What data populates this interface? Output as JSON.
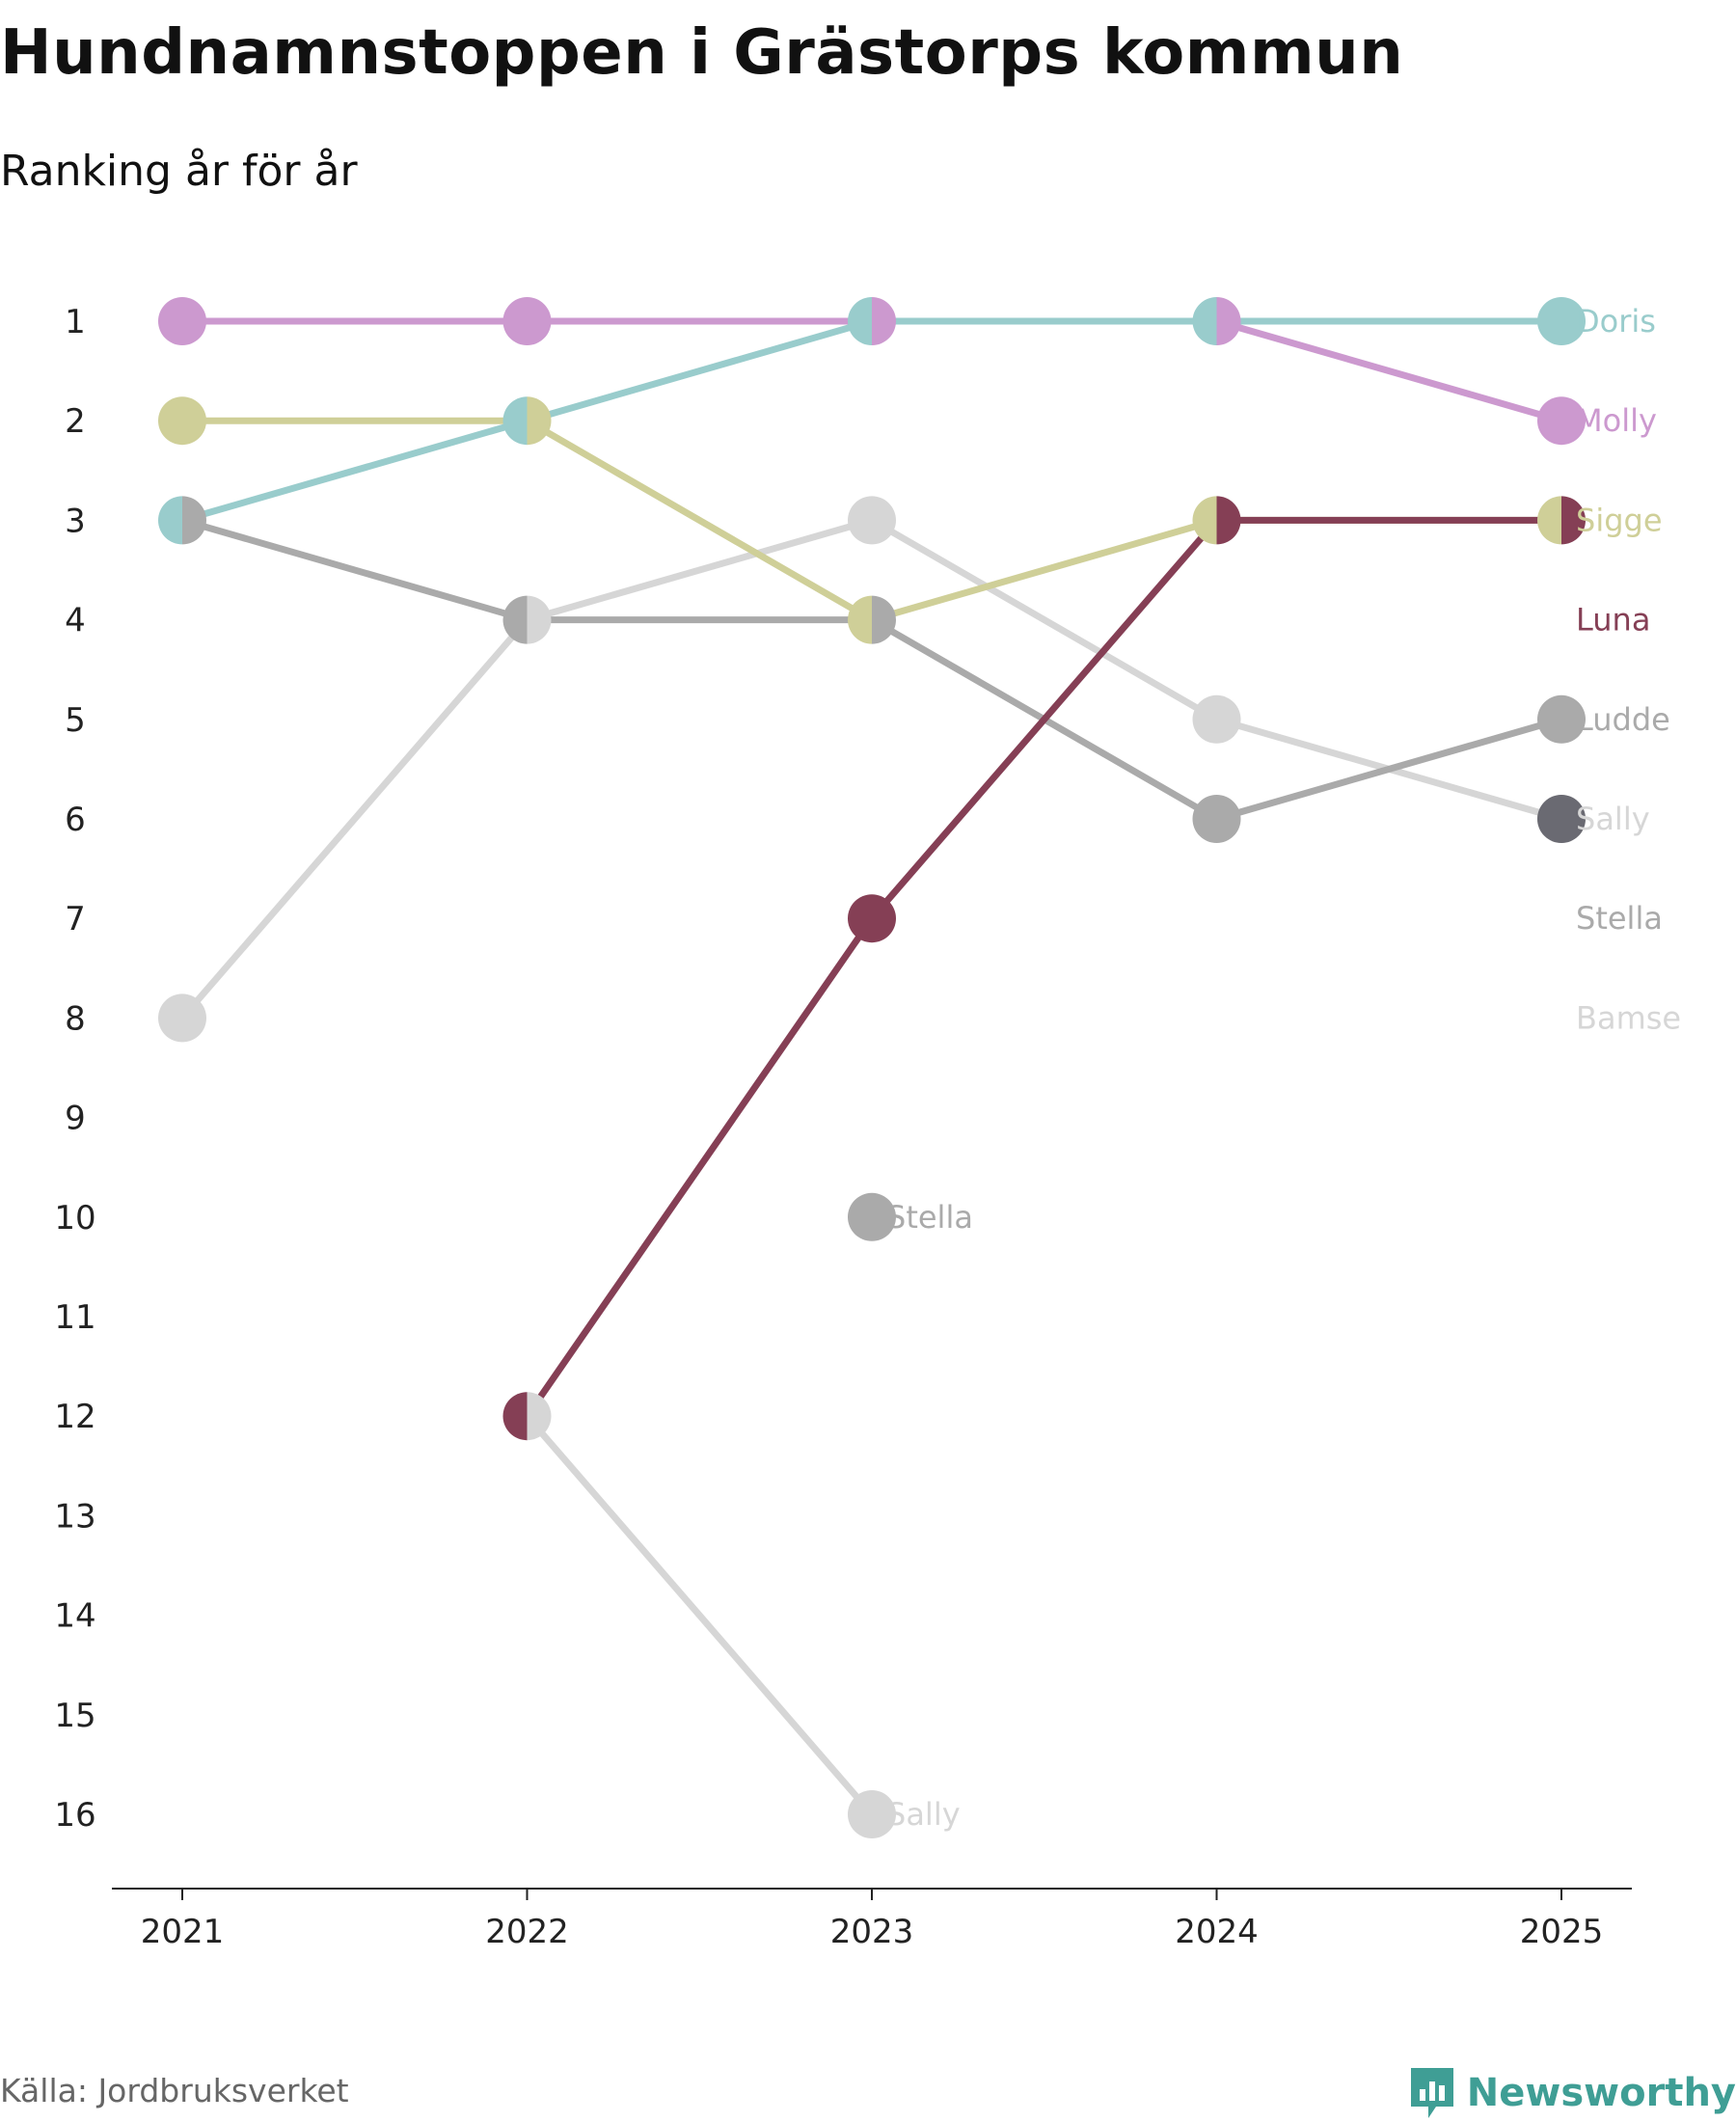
{
  "title": "Hundnamnstoppen i Grästorps kommun",
  "subtitle": "Ranking år för år",
  "source": "Källa: Jordbruksverket",
  "brand": {
    "name": "Newsworthy",
    "icon": "newsworthy-logo-icon",
    "color": "#3f9e95"
  },
  "chart_data": {
    "type": "line",
    "title": "Hundnamnstoppen i Grästorps kommun",
    "subtitle": "Ranking år för år",
    "xlabel": "",
    "ylabel": "",
    "x": [
      "2021",
      "2022",
      "2023",
      "2024",
      "2025"
    ],
    "ylim": [
      1,
      16
    ],
    "y_inverted": true,
    "yticks": [
      "1",
      "2",
      "3",
      "4",
      "5",
      "6",
      "7",
      "8",
      "9",
      "10",
      "11",
      "12",
      "13",
      "14",
      "15",
      "16"
    ],
    "grid": false,
    "series": [
      {
        "name": "Bamse",
        "color": "#d6d6d6",
        "values": [
          8,
          4,
          3,
          5,
          6
        ],
        "label": "Bamse"
      },
      {
        "name": "Sally",
        "color": "#d6d6d6",
        "values": [
          null,
          12,
          16,
          null,
          null
        ],
        "label": "Sally"
      },
      {
        "name": "Stella",
        "color": "#aaaaaa",
        "values": [
          null,
          null,
          10,
          null,
          null
        ],
        "label": "Stella"
      },
      {
        "name": "Ludde",
        "color": "#aaaaaa",
        "values": [
          3,
          4,
          4,
          6,
          5
        ],
        "label": "Ludde"
      },
      {
        "name": "Sigge",
        "color": "#cfcf98",
        "values": [
          2,
          2,
          4,
          3,
          3
        ],
        "label": "Sigge"
      },
      {
        "name": "Luna",
        "color": "#853f55",
        "values": [
          null,
          12,
          7,
          3,
          3
        ],
        "label": "Luna"
      },
      {
        "name": "Molly",
        "color": "#cc99cf",
        "values": [
          1,
          1,
          1,
          1,
          2
        ],
        "label": "Molly"
      },
      {
        "name": "Doris",
        "color": "#99cccc",
        "values": [
          3,
          2,
          1,
          1,
          1
        ],
        "label": "Doris"
      }
    ],
    "end_labels": [
      {
        "text": "Doris",
        "color": "#99cccc",
        "rank": 1
      },
      {
        "text": "Molly",
        "color": "#cc99cf",
        "rank": 2
      },
      {
        "text": "Sigge",
        "color": "#cfcf98",
        "rank": 3
      },
      {
        "text": "Luna",
        "color": "#853f55",
        "rank": 4
      },
      {
        "text": "Ludde",
        "color": "#aaaaaa",
        "rank": 5
      },
      {
        "text": "Sally",
        "color": "#d6d6d6",
        "rank": 6
      },
      {
        "text": "Stella",
        "color": "#aaaaaa",
        "rank": 7
      },
      {
        "text": "Bamse",
        "color": "#d6d6d6",
        "rank": 8
      }
    ],
    "inline_labels": [
      {
        "text": "Stella",
        "color": "#aaaaaa",
        "year": "2023",
        "rank": 10
      },
      {
        "text": "Sally",
        "color": "#d6d6d6",
        "year": "2023",
        "rank": 16
      }
    ],
    "extra_points": [
      {
        "year": "2025",
        "rank": 6,
        "color": "#6a6a72"
      }
    ],
    "split_points": [
      {
        "year": "2021",
        "rank": 3,
        "left": "#99cccc",
        "right": "#aaaaaa"
      },
      {
        "year": "2022",
        "rank": 2,
        "left": "#99cccc",
        "right": "#cfcf98"
      },
      {
        "year": "2022",
        "rank": 4,
        "left": "#aaaaaa",
        "right": "#d6d6d6"
      },
      {
        "year": "2022",
        "rank": 12,
        "left": "#853f55",
        "right": "#d6d6d6"
      },
      {
        "year": "2023",
        "rank": 1,
        "left": "#99cccc",
        "right": "#cc99cf"
      },
      {
        "year": "2023",
        "rank": 4,
        "left": "#cfcf98",
        "right": "#aaaaaa"
      },
      {
        "year": "2024",
        "rank": 1,
        "left": "#99cccc",
        "right": "#cc99cf"
      },
      {
        "year": "2024",
        "rank": 3,
        "left": "#cfcf98",
        "right": "#853f55"
      },
      {
        "year": "2025",
        "rank": 3,
        "left": "#cfcf98",
        "right": "#853f55"
      }
    ]
  }
}
